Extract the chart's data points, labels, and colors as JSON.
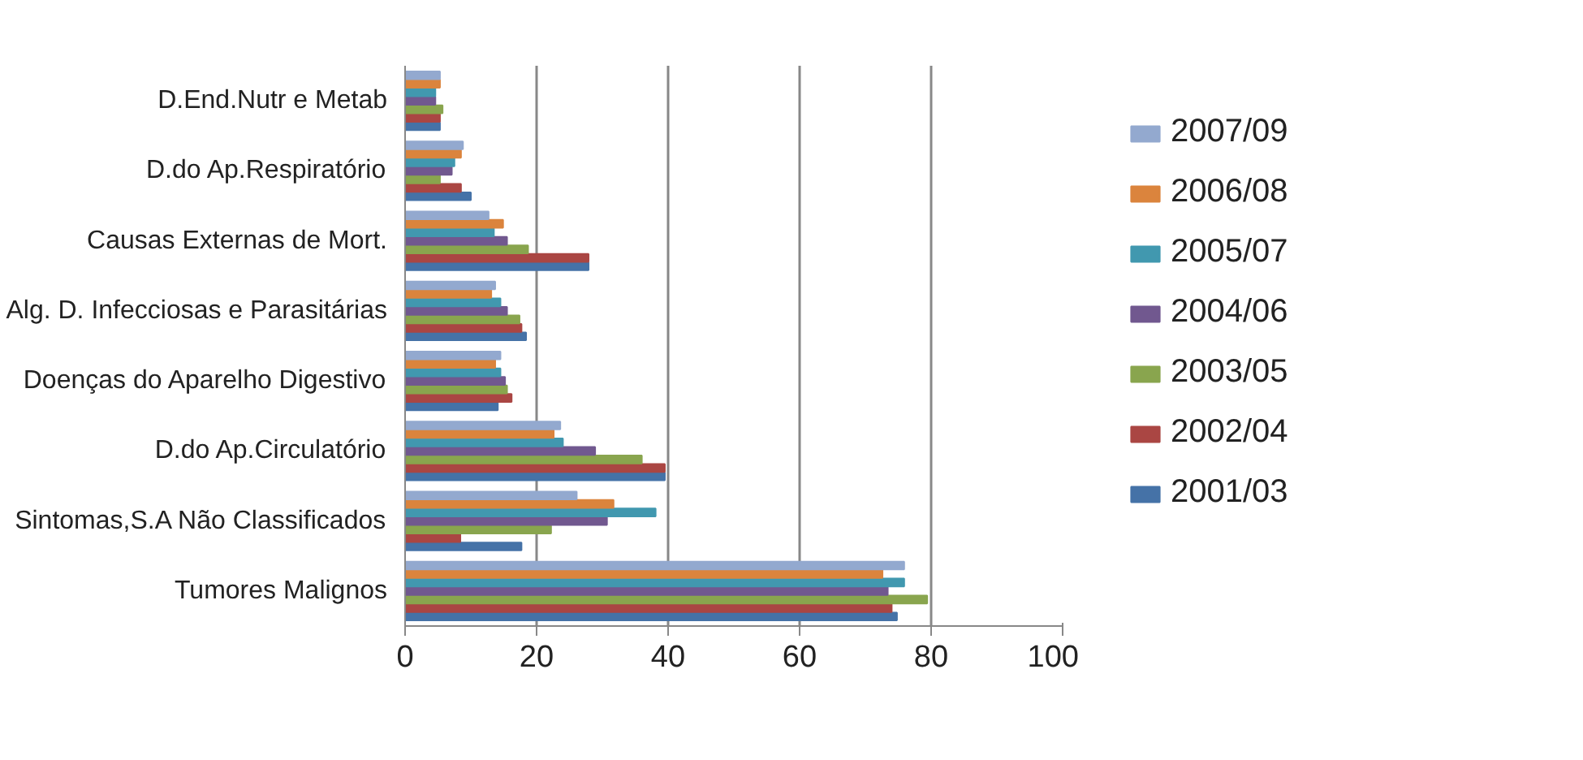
{
  "chart_data": {
    "type": "bar",
    "orientation": "horizontal",
    "categories": [
      "D.End.Nutr e Metab",
      "D.do Ap.Respiratório",
      "Causas Externas de Mort.",
      "Alg. D. Infecciosas e Parasitárias",
      "Doenças do Aparelho Digestivo",
      "D.do Ap.Circulatório",
      "Sintomas,S.A Não Classificados",
      "Tumores Malignos"
    ],
    "series": [
      {
        "name": "2001/03",
        "color": "#4572a7",
        "values": [
          5.3,
          10.0,
          27.9,
          18.4,
          14.1,
          39.5,
          17.7,
          74.8
        ]
      },
      {
        "name": "2002/04",
        "color": "#aa4643",
        "values": [
          5.3,
          8.5,
          27.9,
          17.7,
          16.2,
          39.5,
          8.4,
          74.0
        ]
      },
      {
        "name": "2003/05",
        "color": "#89a54e",
        "values": [
          5.7,
          5.3,
          18.7,
          17.4,
          15.5,
          36.0,
          22.2,
          79.4
        ]
      },
      {
        "name": "2004/06",
        "color": "#71588f",
        "values": [
          4.6,
          7.1,
          15.5,
          15.5,
          15.2,
          28.9,
          30.7,
          73.4
        ]
      },
      {
        "name": "2005/07",
        "color": "#4198af",
        "values": [
          4.6,
          7.5,
          13.5,
          14.5,
          14.5,
          24.0,
          38.1,
          75.9
        ]
      },
      {
        "name": "2006/08",
        "color": "#db843d",
        "values": [
          5.3,
          8.5,
          14.9,
          13.1,
          13.7,
          22.6,
          31.7,
          72.6
        ]
      },
      {
        "name": "2007/09",
        "color": "#93a9cf",
        "values": [
          5.3,
          8.8,
          12.7,
          13.7,
          14.5,
          23.6,
          26.1,
          75.9
        ]
      }
    ],
    "xlim": [
      0,
      100
    ],
    "xticks": [
      0,
      20,
      40,
      60,
      80,
      100
    ],
    "grid": "x",
    "legend": "right"
  }
}
